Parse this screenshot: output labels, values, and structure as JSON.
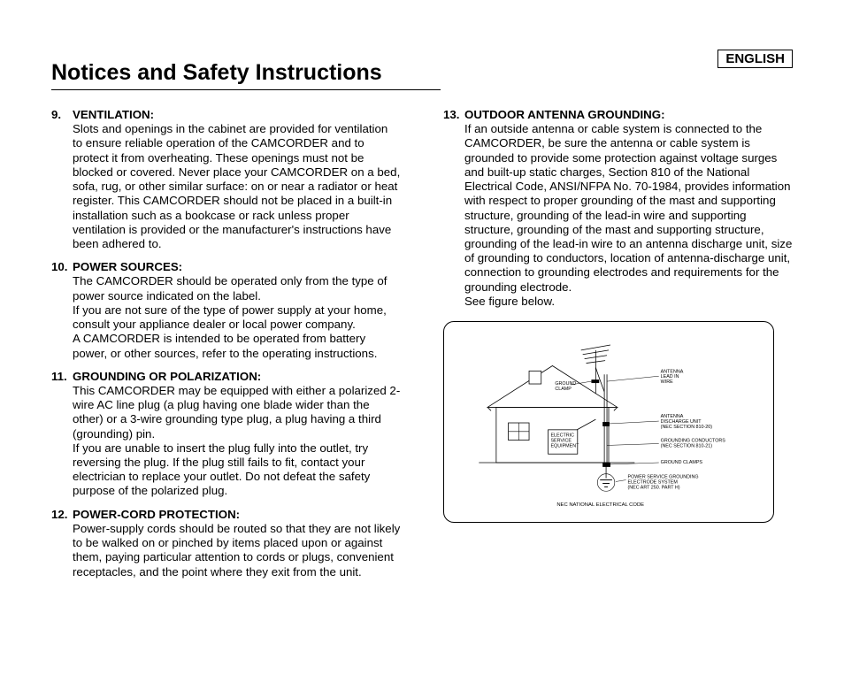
{
  "language_label": "ENGLISH",
  "heading": "Notices and Safety Instructions",
  "left_items": [
    {
      "num": "9.",
      "title": "VENTILATION:",
      "body": "Slots and openings in the cabinet are provided for ventilation to ensure reliable operation of the CAMCORDER and to protect it from overheating. These openings must not be blocked or covered. Never place your CAMCORDER on a bed, sofa, rug, or other similar surface: on or near a radiator or heat register. This CAMCORDER should not be placed in a built-in installation such as a bookcase or rack unless proper ventilation is provided or the manufacturer's instructions have been adhered to."
    },
    {
      "num": "10.",
      "title": "POWER SOURCES:",
      "body": "The CAMCORDER should be operated only from the type of power source indicated on the label.\nIf you are not sure of the type of power supply at your home, consult your appliance dealer or local power company.\nA CAMCORDER is intended to be operated from battery power, or other sources, refer to the operating instructions."
    },
    {
      "num": "11.",
      "title": "GROUNDING OR POLARIZATION:",
      "body": "This CAMCORDER may be equipped with either a polarized 2-wire AC line plug (a plug having one blade wider than the other) or a 3-wire grounding type plug, a plug having a third (grounding) pin.\nIf you are unable to insert the plug fully into the outlet, try reversing the plug. If the plug still fails to fit, contact your electrician to replace your outlet. Do not defeat the safety purpose of the polarized plug."
    },
    {
      "num": "12.",
      "title": "POWER-CORD PROTECTION:",
      "body": "Power-supply cords should be routed so that they are not likely to be walked on or pinched by items placed upon or against them, paying particular attention to cords or plugs, convenient receptacles,  and the point where they exit from the unit."
    }
  ],
  "right_items": [
    {
      "num": "13.",
      "title": "OUTDOOR ANTENNA GROUNDING:",
      "body": "If an outside antenna or cable system is connected to the CAMCORDER, be sure the antenna or cable system is grounded to provide some protection against voltage surges and built-up static charges, Section 810 of the National Electrical Code, ANSI/NFPA No. 70-1984, provides information with respect to proper grounding of the mast and supporting structure, grounding of the lead-in wire and supporting structure, grounding of the mast and supporting structure, grounding of the lead-in wire to an antenna discharge unit, size of grounding to conductors, location of antenna-discharge unit, connection to grounding electrodes and requirements for the grounding electrode.\nSee figure below."
    }
  ],
  "diagram": {
    "labels": {
      "ground_clamp": "GROUND\nCLAMP",
      "antenna_lead": "ANTENNA\nLEAD IN\nWIRE",
      "electric_service": "ELECTRIC\nSERVICE\nEQUIPMENT",
      "discharge_unit": "ANTENNA\nDISCHARGE UNIT\n(NEC SECTION 810-20)",
      "grounding_conductors": "GROUNDING CONDUCTORS\n(NEC SECTION 810-21)",
      "ground_clamps": "GROUND CLAMPS",
      "power_service": "POWER SERVICE GROUNDING\nELECTRODE SYSTEM\n(NEC ART 250. PART H)",
      "caption": "NEC NATIONAL ELECTRICAL CODE"
    },
    "stroke_color": "#000000",
    "fill_light": "#ffffff",
    "fill_gray": "#e6e6e6",
    "font_size_label": 5.5,
    "font_size_caption": 6
  }
}
